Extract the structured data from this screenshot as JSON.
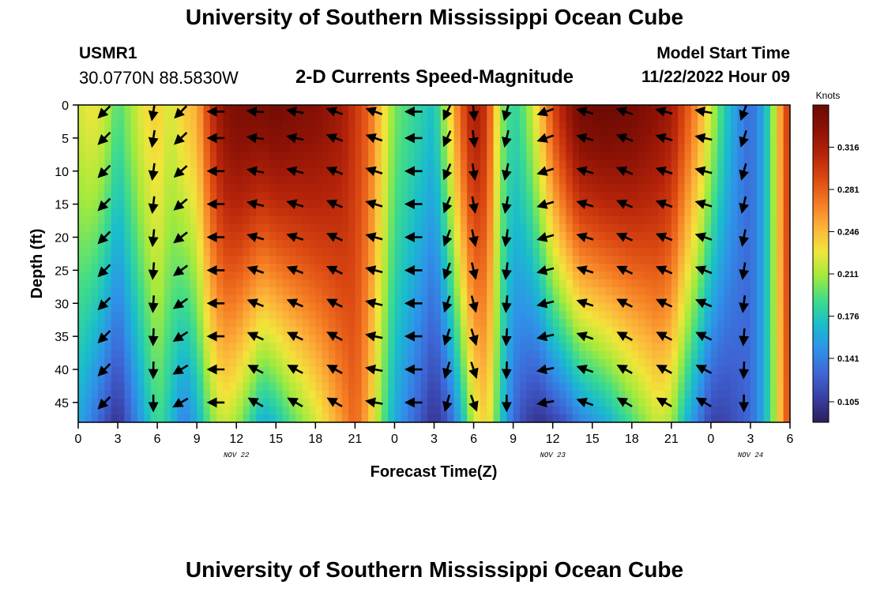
{
  "title_top": "University of Southern Mississippi Ocean Cube",
  "title_bottom": "University of Southern Mississippi Ocean Cube",
  "station": {
    "id": "USMR1",
    "coords": "30.0770N  88.5830W"
  },
  "model_start": {
    "label": "Model Start Time",
    "value": "11/22/2022 Hour 09"
  },
  "chart_data": {
    "type": "heatmap",
    "title": "2-D Currents Speed-Magnitude",
    "xlabel": "Forecast Time(Z)",
    "ylabel": "Depth (ft)",
    "x_tick_labels": [
      "0",
      "3",
      "6",
      "9",
      "12",
      "15",
      "18",
      "21",
      "0",
      "3",
      "6",
      "9",
      "12",
      "15",
      "18",
      "21",
      "0",
      "3",
      "6"
    ],
    "x_hours": [
      0,
      3,
      6,
      9,
      12,
      15,
      18,
      21,
      24,
      27,
      30,
      33,
      36,
      39,
      42,
      45,
      48,
      51,
      54
    ],
    "xlim": [
      0,
      54
    ],
    "date_labels": [
      {
        "text": "NOV 22",
        "hour": 12
      },
      {
        "text": "NOV 23",
        "hour": 36
      },
      {
        "text": "NOV 24",
        "hour": 51
      }
    ],
    "y_ticks": [
      0,
      5,
      10,
      15,
      20,
      25,
      30,
      35,
      40,
      45
    ],
    "ylim": [
      0,
      48
    ],
    "y_inverted": true,
    "colorbar": {
      "unit": "Knots",
      "ticks": [
        "0.316",
        "0.281",
        "0.246",
        "0.211",
        "0.176",
        "0.141",
        "0.105"
      ],
      "tick_values": [
        0.316,
        0.281,
        0.246,
        0.211,
        0.176,
        0.141,
        0.105
      ],
      "range": [
        0.088,
        0.351
      ],
      "colors": [
        "#2d1e5c",
        "#3a3fa4",
        "#3e66d6",
        "#2f92e9",
        "#19bdcc",
        "#3fdc8a",
        "#a3ea3c",
        "#f1e53a",
        "#fcb23a",
        "#f47a23",
        "#db4812",
        "#b5240a",
        "#8c1205",
        "#6a0a04"
      ]
    },
    "speed_profile": {
      "hours": [
        0,
        1,
        2,
        3,
        4,
        5,
        6,
        7,
        8,
        9,
        10,
        11,
        12,
        14,
        15,
        16,
        18,
        20,
        21,
        22,
        23,
        24,
        25,
        26,
        27,
        28,
        29,
        30,
        31,
        32,
        33,
        34,
        35,
        36,
        37,
        38,
        40,
        42,
        44,
        45,
        46,
        47,
        48,
        49,
        50,
        51,
        52,
        52.5,
        53,
        53.5,
        54
      ],
      "surface": [
        0.22,
        0.23,
        0.22,
        0.19,
        0.21,
        0.23,
        0.24,
        0.22,
        0.24,
        0.25,
        0.3,
        0.33,
        0.34,
        0.34,
        0.345,
        0.34,
        0.335,
        0.32,
        0.3,
        0.28,
        0.24,
        0.2,
        0.19,
        0.18,
        0.17,
        0.22,
        0.28,
        0.32,
        0.3,
        0.21,
        0.18,
        0.2,
        0.24,
        0.29,
        0.32,
        0.345,
        0.35,
        0.345,
        0.33,
        0.32,
        0.29,
        0.26,
        0.22,
        0.18,
        0.15,
        0.13,
        0.16,
        0.19,
        0.23,
        0.28,
        0.3
      ],
      "bottom": [
        0.16,
        0.14,
        0.12,
        0.1,
        0.13,
        0.16,
        0.19,
        0.17,
        0.14,
        0.16,
        0.2,
        0.22,
        0.21,
        0.16,
        0.17,
        0.19,
        0.22,
        0.26,
        0.28,
        0.25,
        0.2,
        0.16,
        0.14,
        0.12,
        0.1,
        0.12,
        0.16,
        0.22,
        0.24,
        0.18,
        0.13,
        0.11,
        0.1,
        0.11,
        0.12,
        0.14,
        0.16,
        0.19,
        0.22,
        0.21,
        0.17,
        0.14,
        0.11,
        0.11,
        0.12,
        0.13,
        0.16,
        0.19,
        0.22,
        0.27,
        0.29
      ]
    },
    "vector_hours": [
      2,
      5.7,
      7.8,
      10.5,
      13.5,
      16.5,
      19.5,
      22.5,
      25.5,
      28,
      30,
      32.5,
      35.5,
      38.5,
      41.5,
      44.5,
      47.5,
      50.5
    ],
    "vector_depths": [
      1,
      5,
      10,
      15,
      20,
      25,
      30,
      35,
      40,
      45
    ],
    "vector_directions_deg": [
      225,
      190,
      225,
      270,
      275,
      280,
      290,
      290,
      270,
      205,
      175,
      195,
      250,
      285,
      290,
      285,
      280,
      200
    ],
    "vector_bottom_directions_deg": [
      225,
      180,
      240,
      270,
      300,
      300,
      300,
      280,
      270,
      195,
      160,
      180,
      260,
      290,
      300,
      300,
      300,
      180
    ]
  }
}
